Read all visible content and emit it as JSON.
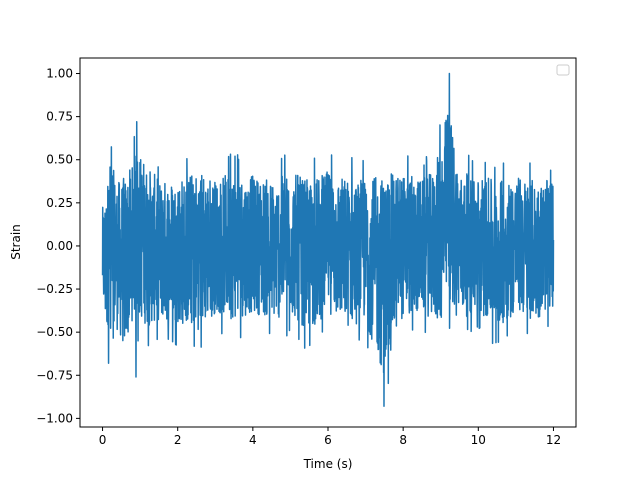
{
  "chart_data": {
    "type": "line",
    "title": "",
    "xlabel": "Time (s)",
    "ylabel": "Strain",
    "xlim": [
      -0.6,
      12.6
    ],
    "ylim": [
      -1.05,
      1.09
    ],
    "xticks": [
      0,
      2,
      4,
      6,
      8,
      10,
      12
    ],
    "xtick_labels": [
      "0",
      "2",
      "4",
      "6",
      "8",
      "10",
      "12"
    ],
    "yticks": [
      -1.0,
      -0.75,
      -0.5,
      -0.25,
      0.0,
      0.25,
      0.5,
      0.75,
      1.0
    ],
    "ytick_labels": [
      "−1.00",
      "−0.75",
      "−0.50",
      "−0.25",
      "0.00",
      "0.25",
      "0.50",
      "0.75",
      "1.00"
    ],
    "grid": false,
    "legend": {
      "location": "upper right",
      "entries": []
    },
    "series": [
      {
        "color": "#1f77b4",
        "x_range": [
          0,
          12
        ],
        "envelope": {
          "x": [
            0.0,
            0.1,
            0.2,
            0.4,
            0.6,
            0.8,
            0.9,
            1.2,
            1.5,
            2.0,
            2.6,
            3.0,
            3.5,
            4.0,
            4.6,
            5.0,
            5.5,
            6.0,
            6.5,
            7.0,
            7.5,
            7.9,
            8.5,
            8.8,
            9.0,
            9.2,
            9.5,
            10.0,
            10.5,
            11.0,
            11.5,
            12.0
          ],
          "upper": [
            0.3,
            0.45,
            0.62,
            0.5,
            0.55,
            0.6,
            0.72,
            0.6,
            0.5,
            0.52,
            0.58,
            0.5,
            0.55,
            0.52,
            0.5,
            0.55,
            0.5,
            0.55,
            0.52,
            0.5,
            0.58,
            0.55,
            0.5,
            0.55,
            0.73,
            1.0,
            0.55,
            0.52,
            0.5,
            0.52,
            0.5,
            0.48
          ],
          "lower": [
            -0.42,
            -0.68,
            -0.5,
            -0.62,
            -0.76,
            -0.55,
            -0.55,
            -0.6,
            -0.55,
            -0.58,
            -0.62,
            -0.5,
            -0.55,
            -0.5,
            -0.55,
            -0.52,
            -0.62,
            -0.5,
            -0.6,
            -0.55,
            -0.93,
            -0.55,
            -0.5,
            -0.55,
            -0.6,
            -0.5,
            -0.55,
            -0.5,
            -0.6,
            -0.5,
            -0.55,
            -0.45
          ]
        }
      }
    ]
  }
}
